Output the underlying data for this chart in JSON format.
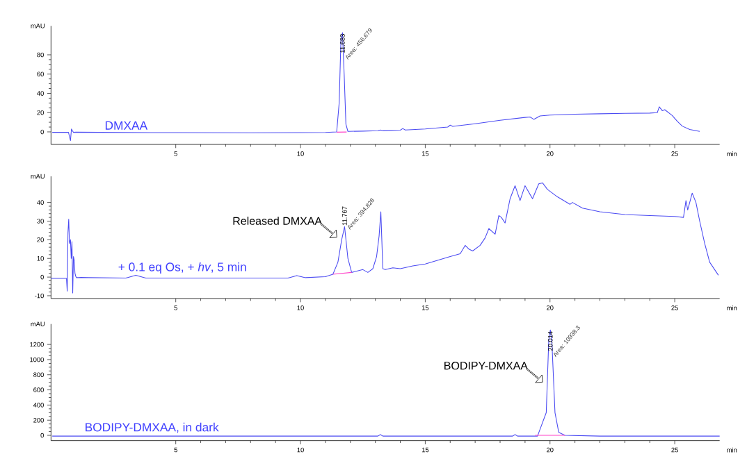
{
  "chart_data": [
    {
      "type": "line",
      "xlabel": "min",
      "ylabel": "mAU",
      "xlim": [
        0,
        26.8
      ],
      "ylim": [
        -13,
        110
      ],
      "xticks": [
        5,
        10,
        15,
        20,
        25
      ],
      "yticks": [
        0,
        20,
        40,
        60,
        80
      ],
      "series": [
        {
          "color": "#4a4af2",
          "x": [
            0.05,
            0.7,
            0.78,
            0.82,
            0.86,
            0.9,
            1.0,
            2,
            4,
            6,
            8,
            10,
            11.0,
            11.45,
            11.55,
            11.62,
            11.683,
            11.75,
            11.82,
            11.9,
            12.5,
            13.1,
            13.2,
            13.3,
            14.0,
            14.1,
            14.2,
            15.0,
            15.9,
            16.0,
            16.1,
            17.0,
            18.0,
            19.0,
            19.2,
            19.35,
            19.6,
            20.0,
            21.0,
            22.0,
            23.0,
            24.0,
            24.3,
            24.38,
            24.5,
            24.6,
            24.7,
            24.9,
            25.1,
            25.3,
            25.6,
            26.0
          ],
          "values": [
            -0.5,
            -0.5,
            -9,
            3,
            1,
            -0.5,
            -0.3,
            -0.5,
            -0.7,
            -0.8,
            -0.9,
            -0.8,
            -0.6,
            0,
            30,
            95,
            103,
            60,
            8,
            0.5,
            0.8,
            1.2,
            2,
            1.3,
            1.8,
            3.5,
            2,
            3,
            5,
            7,
            5.8,
            8.5,
            12,
            15,
            15.5,
            13,
            16.5,
            17.5,
            18.3,
            18.8,
            19.2,
            19.5,
            20,
            26,
            22,
            23,
            21,
            17,
            11,
            6,
            2.5,
            0.5
          ]
        },
        {
          "color": "#ff40c8",
          "x": [
            11.45,
            11.85
          ],
          "values": [
            -0.3,
            -0.1
          ]
        }
      ],
      "annotations": [
        {
          "text": "11.683",
          "x": 11.683,
          "y": 103
        },
        "Area: 456.679",
        "DMXAA"
      ]
    },
    {
      "type": "line",
      "xlabel": "min",
      "ylabel": "mAU",
      "xlim": [
        0,
        26.8
      ],
      "ylim": [
        -11.5,
        54
      ],
      "xticks": [
        5,
        10,
        15,
        20,
        25
      ],
      "yticks": [
        -10,
        0,
        10,
        20,
        30,
        40
      ],
      "series": [
        {
          "color": "#4a4af2",
          "x": [
            0.0,
            0.62,
            0.65,
            0.68,
            0.71,
            0.74,
            0.78,
            0.81,
            0.84,
            0.87,
            0.9,
            0.93,
            0.96,
            0.99,
            1.02,
            1.05,
            1.1,
            1.2,
            1.5,
            3.0,
            3.4,
            3.8,
            6,
            9.5,
            9.85,
            10.2,
            11.0,
            11.3,
            11.5,
            11.65,
            11.767,
            11.9,
            12.05,
            12.2,
            12.5,
            12.7,
            12.9,
            13.05,
            13.15,
            13.22,
            13.3,
            13.4,
            13.7,
            14.0,
            14.5,
            15.0,
            16.0,
            16.4,
            16.6,
            16.75,
            16.9,
            17.2,
            17.4,
            17.55,
            17.8,
            17.95,
            18.05,
            18.2,
            18.4,
            18.6,
            18.8,
            19.0,
            19.3,
            19.55,
            19.7,
            19.9,
            20.3,
            20.8,
            20.9,
            21.3,
            22.0,
            23.0,
            24.0,
            25.0,
            25.35,
            25.45,
            25.52,
            25.6,
            25.7,
            25.85,
            26.0,
            26.2,
            26.4,
            26.75
          ],
          "values": [
            -0.7,
            -0.7,
            -7.5,
            24,
            31,
            18,
            20,
            10,
            19,
            -8.5,
            11,
            9,
            2,
            0.5,
            -0.3,
            -0.3,
            -0.3,
            -0.2,
            -0.3,
            -0.5,
            1,
            -0.5,
            -0.5,
            -0.5,
            0.8,
            -0.3,
            0.2,
            1.5,
            8,
            20,
            27,
            10,
            2.5,
            3,
            4,
            2.5,
            4.5,
            11,
            22,
            35,
            4.5,
            4,
            5,
            4.5,
            6,
            7,
            11,
            12.5,
            17,
            15,
            14,
            17,
            21,
            26,
            23,
            33,
            32,
            29,
            42,
            49,
            41,
            49,
            42,
            50,
            50.5,
            47,
            43,
            39,
            40,
            37,
            35,
            33.5,
            33,
            32.5,
            32,
            41,
            36,
            40,
            45,
            40,
            30,
            18,
            8,
            1
          ]
        },
        {
          "color": "#ff40c8",
          "x": [
            11.3,
            12.05
          ],
          "values": [
            1.5,
            2.5
          ]
        }
      ],
      "annotations": [
        {
          "text": "11.767",
          "x": 11.767,
          "y": 27
        },
        "Area: 394.828",
        "+ 0.1 eq Os, + *hv*, 5 min",
        "Released DMXAA"
      ]
    },
    {
      "type": "line",
      "xlabel": "min",
      "ylabel": "mAU",
      "xlim": [
        0,
        26.8
      ],
      "ylim": [
        -70,
        1470
      ],
      "xticks": [
        5,
        10,
        15,
        20,
        25
      ],
      "yticks": [
        0,
        200,
        400,
        600,
        800,
        1000,
        1200
      ],
      "series": [
        {
          "color": "#4a4af2",
          "x": [
            0.05,
            1.0,
            1.5,
            5,
            10,
            13.1,
            13.2,
            13.3,
            15,
            18.5,
            18.6,
            18.7,
            19.5,
            19.85,
            19.95,
            20.014,
            20.08,
            20.2,
            20.35,
            20.6,
            22,
            25,
            26.8
          ],
          "values": [
            -10,
            -10,
            -10,
            -10,
            -10,
            -10,
            10,
            -10,
            -10,
            -10,
            10,
            -10,
            -10,
            300,
            1250,
            1390,
            1200,
            300,
            40,
            0,
            -10,
            -10,
            -10
          ]
        },
        {
          "color": "#ff40c8",
          "x": [
            19.4,
            20.6
          ],
          "values": [
            0,
            0
          ]
        }
      ],
      "annotations": [
        {
          "text": "20.014",
          "x": 20.014,
          "y": 1390
        },
        "Area: 10938.3",
        "BODIPY-DMXAA, in dark",
        "BODIPY-DMXAA"
      ]
    }
  ]
}
